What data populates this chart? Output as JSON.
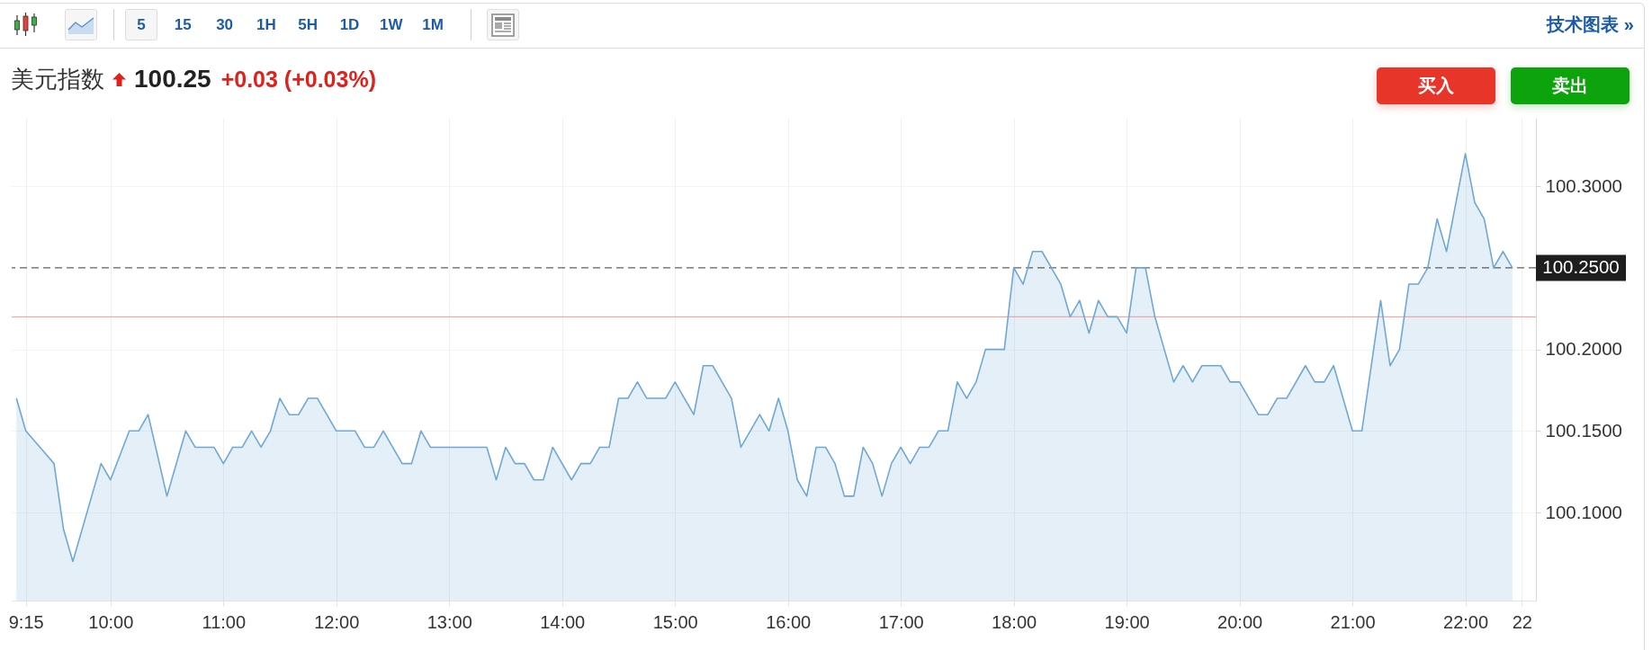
{
  "chart_data": {
    "type": "area",
    "title": "美元指数",
    "annotations": [
      "5",
      "15",
      "30",
      "1H",
      "5H",
      "1D",
      "1W",
      "1M",
      "技术图表 »",
      "100.25",
      "+0.03 (+0.03%)",
      "买入",
      "卖出"
    ],
    "x": [
      9.1667,
      9.25,
      9.5,
      9.5833,
      9.6667,
      9.9167,
      10,
      10.1667,
      10.25,
      10.3333,
      10.5,
      10.6667,
      10.75,
      10.9167,
      11,
      11.0833,
      11.1667,
      11.25,
      11.3333,
      11.4167,
      11.5,
      11.5833,
      11.6667,
      11.75,
      11.8333,
      12,
      12.1667,
      12.25,
      12.3333,
      12.4167,
      12.5833,
      12.6667,
      12.75,
      12.8333,
      13.3333,
      13.4167,
      13.5,
      13.5833,
      13.6667,
      13.75,
      13.8333,
      13.9167,
      14.0833,
      14.1667,
      14.25,
      14.3333,
      14.4167,
      14.5,
      14.5833,
      14.6667,
      14.75,
      14.9167,
      15,
      15.0833,
      15.1667,
      15.25,
      15.3333,
      15.4167,
      15.5,
      15.5833,
      15.6667,
      15.75,
      15.8333,
      15.9167,
      16,
      16.0833,
      16.1667,
      16.25,
      16.3333,
      16.4167,
      16.5,
      16.5833,
      16.6667,
      16.75,
      16.8333,
      16.9167,
      17,
      17.0833,
      17.1667,
      17.25,
      17.3333,
      17.4167,
      17.5,
      17.5833,
      17.6667,
      17.75,
      17.9167,
      18,
      18.0833,
      18.1667,
      18.25,
      18.3333,
      18.4167,
      18.5,
      18.5833,
      18.6667,
      18.75,
      18.8333,
      18.9167,
      19,
      19.0833,
      19.1667,
      19.25,
      19.4167,
      19.5,
      19.5833,
      19.6667,
      19.8333,
      19.9167,
      20,
      20.1667,
      20.25,
      20.3333,
      20.4167,
      20.5833,
      20.6667,
      20.75,
      20.8333,
      21,
      21.0833,
      21.25,
      21.3333,
      21.4167,
      21.5,
      21.5833,
      21.6667,
      21.75,
      21.8333,
      22,
      22.0833,
      22.1667,
      22.25,
      22.3333,
      22.4167
    ],
    "series": [
      {
        "color": "#6ea8d6",
        "values": [
          100.17,
          100.15,
          100.13,
          100.09,
          100.07,
          100.13,
          100.12,
          100.15,
          100.15,
          100.16,
          100.11,
          100.15,
          100.14,
          100.14,
          100.13,
          100.14,
          100.14,
          100.15,
          100.14,
          100.15,
          100.17,
          100.16,
          100.16,
          100.17,
          100.17,
          100.15,
          100.15,
          100.14,
          100.14,
          100.15,
          100.13,
          100.13,
          100.15,
          100.14,
          100.14,
          100.12,
          100.14,
          100.13,
          100.13,
          100.12,
          100.12,
          100.14,
          100.12,
          100.13,
          100.13,
          100.14,
          100.14,
          100.17,
          100.17,
          100.18,
          100.17,
          100.17,
          100.18,
          100.17,
          100.16,
          100.19,
          100.19,
          100.18,
          100.17,
          100.14,
          100.15,
          100.16,
          100.15,
          100.17,
          100.15,
          100.12,
          100.11,
          100.14,
          100.14,
          100.13,
          100.11,
          100.11,
          100.14,
          100.13,
          100.11,
          100.13,
          100.14,
          100.13,
          100.14,
          100.14,
          100.15,
          100.15,
          100.18,
          100.17,
          100.18,
          100.2,
          100.2,
          100.25,
          100.24,
          100.26,
          100.26,
          100.25,
          100.24,
          100.22,
          100.23,
          100.21,
          100.23,
          100.22,
          100.22,
          100.21,
          100.25,
          100.25,
          100.22,
          100.18,
          100.19,
          100.18,
          100.19,
          100.19,
          100.18,
          100.18,
          100.16,
          100.16,
          100.17,
          100.17,
          100.19,
          100.18,
          100.18,
          100.19,
          100.15,
          100.15,
          100.23,
          100.19,
          100.2,
          100.24,
          100.24,
          100.25,
          100.28,
          100.26,
          100.32,
          100.29,
          100.28,
          100.25,
          100.26,
          100.25
        ]
      }
    ],
    "xlim": [
      9.125,
      22.625
    ],
    "xticks": [
      {
        "value": 9.25,
        "label": "9:15"
      },
      {
        "value": 10,
        "label": "10:00"
      },
      {
        "value": 11,
        "label": "11:00"
      },
      {
        "value": 12,
        "label": "12:00"
      },
      {
        "value": 13,
        "label": "13:00"
      },
      {
        "value": 14,
        "label": "14:00"
      },
      {
        "value": 15,
        "label": "15:00"
      },
      {
        "value": 16,
        "label": "16:00"
      },
      {
        "value": 17,
        "label": "17:00"
      },
      {
        "value": 18,
        "label": "18:00"
      },
      {
        "value": 19,
        "label": "19:00"
      },
      {
        "value": 20,
        "label": "20:00"
      },
      {
        "value": 21,
        "label": "21:00"
      },
      {
        "value": 22,
        "label": "22:00"
      },
      {
        "value": 22.5,
        "label": "22"
      }
    ],
    "ylim": [
      100.046,
      100.342
    ],
    "yticks": [
      {
        "value": 100.1,
        "label": "100.1000"
      },
      {
        "value": 100.15,
        "label": "100.1500"
      },
      {
        "value": 100.2,
        "label": "100.2000"
      },
      {
        "value": 100.3,
        "label": "100.3000"
      }
    ],
    "grid": true,
    "ref_lines": [
      {
        "axis": "y",
        "value": 100.25,
        "label": "100.2500",
        "color": "#3a3a3a",
        "line_style": "dashed"
      },
      {
        "axis": "y",
        "value": 100.22,
        "color": "#f29494"
      }
    ]
  }
}
